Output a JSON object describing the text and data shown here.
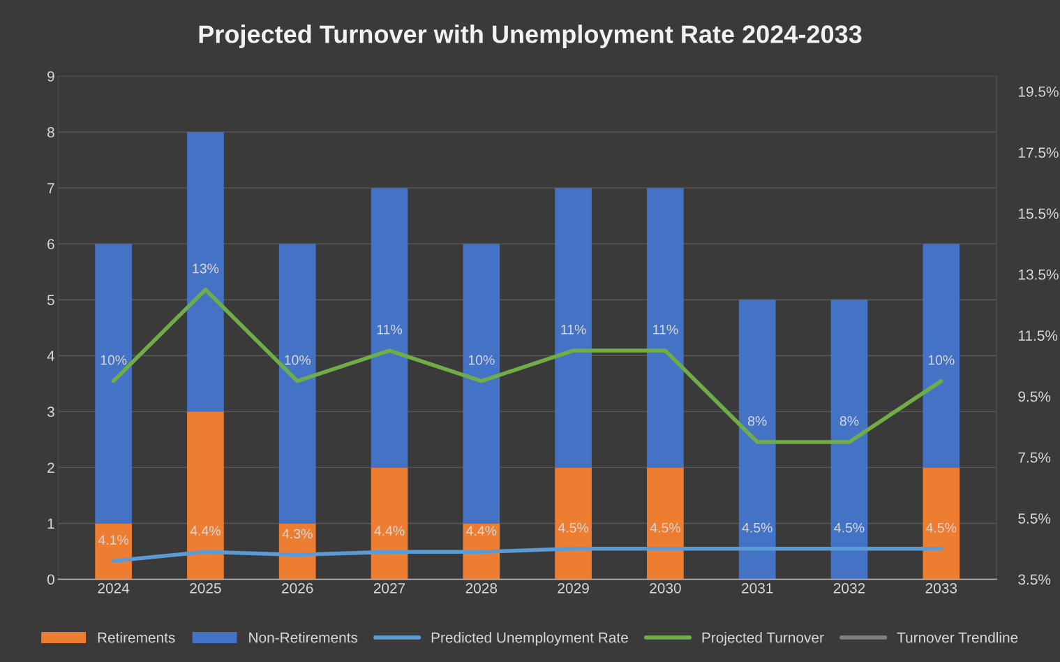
{
  "chart_data": {
    "type": "bar",
    "stacked": true,
    "title": "Projected Turnover with Unemployment Rate 2024-2033",
    "categories": [
      "2024",
      "2025",
      "2026",
      "2027",
      "2028",
      "2029",
      "2030",
      "2031",
      "2032",
      "2033"
    ],
    "series": [
      {
        "name": "Retirements",
        "color": "#ed7d31",
        "values": [
          1,
          3,
          1,
          2,
          1,
          2,
          2,
          0,
          0,
          2
        ]
      },
      {
        "name": "Non-Retirements",
        "color": "#4472c4",
        "values": [
          5,
          5,
          5,
          5,
          5,
          5,
          5,
          5,
          5,
          4
        ]
      },
      {
        "name": "Predicted Unemployment Rate",
        "type": "line",
        "axis": "y2",
        "color": "#5b9bd5",
        "values": [
          4.1,
          4.4,
          4.3,
          4.4,
          4.4,
          4.5,
          4.5,
          4.5,
          4.5,
          4.5
        ],
        "value_labels": [
          "4.1%",
          "4.4%",
          "4.3%",
          "4.4%",
          "4.4%",
          "4.5%",
          "4.5%",
          "4.5%",
          "4.5%",
          "4.5%"
        ]
      },
      {
        "name": "Projected Turnover",
        "type": "line",
        "axis": "y2",
        "color": "#70ad47",
        "values": [
          10,
          13,
          10,
          11,
          10,
          11,
          11,
          8,
          8,
          10
        ],
        "value_labels": [
          "10%",
          "13%",
          "10%",
          "11%",
          "10%",
          "11%",
          "11%",
          "8%",
          "8%",
          "10%"
        ]
      },
      {
        "name": "Turnover Trendline",
        "type": "line",
        "axis": "y2",
        "color": "#7f7f7f",
        "values": [
          null,
          null,
          null,
          null,
          null,
          null,
          null,
          null,
          null,
          null
        ]
      }
    ],
    "ylim": [
      0,
      9
    ],
    "yticks": [
      0,
      1,
      2,
      3,
      4,
      5,
      6,
      7,
      8,
      9
    ],
    "y2lim": [
      3.5,
      20
    ],
    "y2ticks": [
      {
        "value": 3.5,
        "label": "3.5%"
      },
      {
        "value": 5.5,
        "label": "5.5%"
      },
      {
        "value": 7.5,
        "label": "7.5%"
      },
      {
        "value": 9.5,
        "label": "9.5%"
      },
      {
        "value": 11.5,
        "label": "11.5%"
      },
      {
        "value": 13.5,
        "label": "13.5%"
      },
      {
        "value": 15.5,
        "label": "15.5%"
      },
      {
        "value": 17.5,
        "label": "17.5%"
      },
      {
        "value": 19.5,
        "label": "19.5%"
      }
    ],
    "grid": "y",
    "legend": "bottom"
  }
}
